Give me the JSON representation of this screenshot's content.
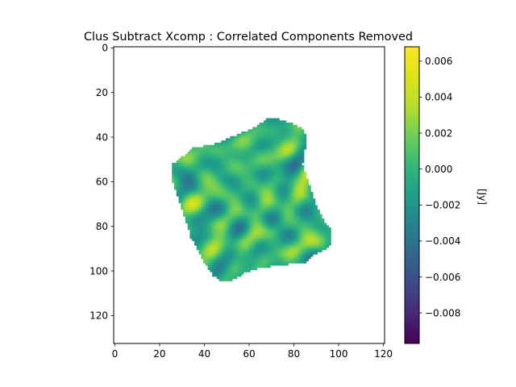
{
  "chart_data": {
    "type": "heatmap",
    "title": "Clus Subtract Xcomp : Correlated Components Removed",
    "xlabel": "",
    "ylabel": "",
    "image_extent": {
      "x": [
        -0.5,
        120.5
      ],
      "y": [
        132.5,
        -0.5
      ]
    },
    "x_ticks": [
      0,
      20,
      40,
      60,
      80,
      100,
      120
    ],
    "y_ticks": [
      0,
      20,
      40,
      60,
      80,
      100,
      120
    ],
    "x_tick_labels": [
      "0",
      "20",
      "40",
      "60",
      "80",
      "100",
      "120"
    ],
    "y_tick_labels": [
      "0",
      "20",
      "40",
      "60",
      "80",
      "100",
      "120"
    ],
    "colormap": "viridis",
    "colorbar": {
      "label": "[Jy]",
      "range": [
        -0.0097,
        0.0068
      ],
      "ticks": [
        -0.008,
        -0.006,
        -0.004,
        -0.002,
        0.0,
        0.002,
        0.004,
        0.006
      ],
      "tick_labels": [
        "−0.008",
        "−0.006",
        "−0.004",
        "−0.002",
        "0.000",
        "0.002",
        "0.004",
        "0.006"
      ]
    },
    "valid_region_polygon": [
      [
        26,
        52
      ],
      [
        35,
        45
      ],
      [
        45,
        43
      ],
      [
        52,
        40
      ],
      [
        62,
        36
      ],
      [
        68,
        32
      ],
      [
        74,
        32
      ],
      [
        80,
        34
      ],
      [
        84,
        36
      ],
      [
        86,
        40
      ],
      [
        85,
        46
      ],
      [
        84,
        52
      ],
      [
        86,
        58
      ],
      [
        88,
        64
      ],
      [
        90,
        70
      ],
      [
        94,
        78
      ],
      [
        97,
        82
      ],
      [
        97,
        88
      ],
      [
        93,
        91
      ],
      [
        89,
        93
      ],
      [
        86,
        96
      ],
      [
        78,
        97
      ],
      [
        70,
        98
      ],
      [
        64,
        99
      ],
      [
        58,
        101
      ],
      [
        53,
        104
      ],
      [
        48,
        105
      ],
      [
        44,
        102
      ],
      [
        40,
        96
      ],
      [
        37,
        90
      ],
      [
        34,
        85
      ],
      [
        32,
        78
      ],
      [
        30,
        72
      ],
      [
        28,
        66
      ],
      [
        26,
        60
      ],
      [
        26,
        56
      ]
    ],
    "field_description": "mottled zero-mean fluctuations, mostly -0.004..0.004 Jy, NaN outside valid region",
    "value_stats": {
      "min": -0.0097,
      "max": 0.0068
    },
    "grid": false
  }
}
